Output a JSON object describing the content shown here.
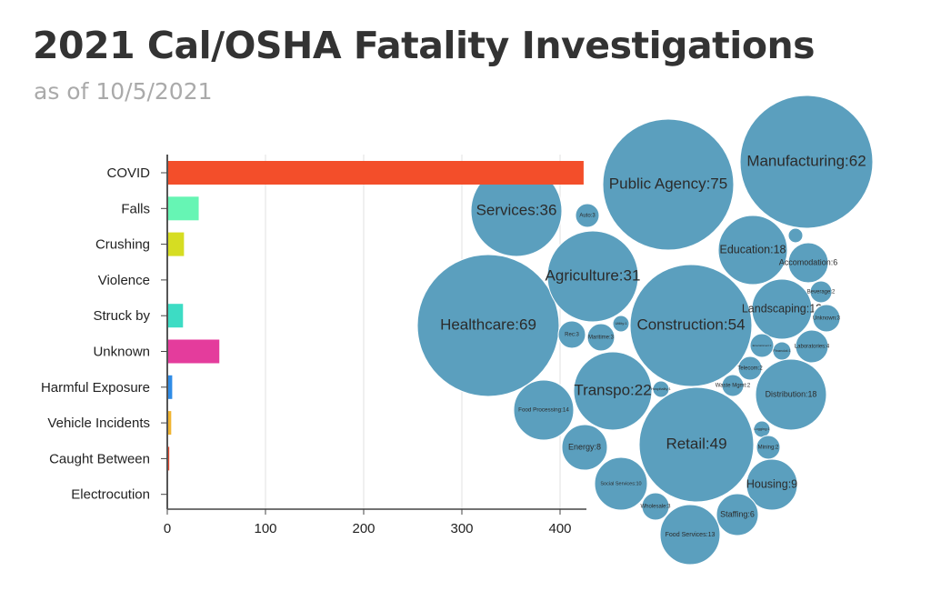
{
  "title": "2021 Cal/OSHA Fatality Investigations",
  "subtitle": "as of 10/5/2021",
  "chart_data": [
    {
      "type": "bar",
      "orientation": "horizontal",
      "categories": [
        "COVID",
        "Falls",
        "Crushing",
        "Violence",
        "Struck by",
        "Unknown",
        "Harmful Exposure",
        "Vehicle Incidents",
        "Caught Between",
        "Electrocution"
      ],
      "values": [
        424,
        32,
        17,
        0,
        16,
        53,
        5,
        4,
        2,
        0
      ],
      "colors": [
        "#f34e2a",
        "#66f5b4",
        "#d6dd22",
        "#cccccc",
        "#3ddcc4",
        "#e43c9c",
        "#2f8ce6",
        "#f0b431",
        "#e5492f",
        "#cccccc"
      ],
      "xticks": [
        0,
        100,
        200,
        300,
        400
      ],
      "xlim": [
        0,
        424
      ],
      "grid": true
    },
    {
      "type": "bubble",
      "color": "#5b9fbe",
      "items": [
        {
          "label": "Manufacturing:62",
          "value": 62
        },
        {
          "label": "Public Agency:75",
          "value": 75
        },
        {
          "label": "Services:36",
          "value": 36
        },
        {
          "label": "Auto:3",
          "value": 3
        },
        {
          "label": "Healthcare:69",
          "value": 69
        },
        {
          "label": "Agriculture:31",
          "value": 31
        },
        {
          "label": "Construction:54",
          "value": 54
        },
        {
          "label": "Education:18",
          "value": 18
        },
        {
          "label": "",
          "value": 1
        },
        {
          "label": "Accomodation:6",
          "value": 6
        },
        {
          "label": "Landscaping:13",
          "value": 13
        },
        {
          "label": "Beverage:2",
          "value": 2
        },
        {
          "label": "Unknown:3",
          "value": 3
        },
        {
          "label": "Laboratories:4",
          "value": 4
        },
        {
          "label": "Entertainment:2",
          "value": 2
        },
        {
          "label": "Financial:1",
          "value": 1
        },
        {
          "label": "Telecom:2",
          "value": 2
        },
        {
          "label": "Waste Mgmt:2",
          "value": 2
        },
        {
          "label": "Distribution:18",
          "value": 18
        },
        {
          "label": "Rec:3",
          "value": 3
        },
        {
          "label": "Maritime:3",
          "value": 3
        },
        {
          "label": "Utility:1",
          "value": 1
        },
        {
          "label": "Transpo:22",
          "value": 22
        },
        {
          "label": "Hospitality:1",
          "value": 1
        },
        {
          "label": "Food Processing:14",
          "value": 14
        },
        {
          "label": "Energy:8",
          "value": 8
        },
        {
          "label": "Retail:49",
          "value": 49
        },
        {
          "label": "Logging:1",
          "value": 1
        },
        {
          "label": "Mining:2",
          "value": 2
        },
        {
          "label": "Social Services:10",
          "value": 10
        },
        {
          "label": "Housing:9",
          "value": 9
        },
        {
          "label": "Wholesale:3",
          "value": 3
        },
        {
          "label": "Staffing:6",
          "value": 6
        },
        {
          "label": "Food Services:13",
          "value": 13
        }
      ]
    }
  ]
}
